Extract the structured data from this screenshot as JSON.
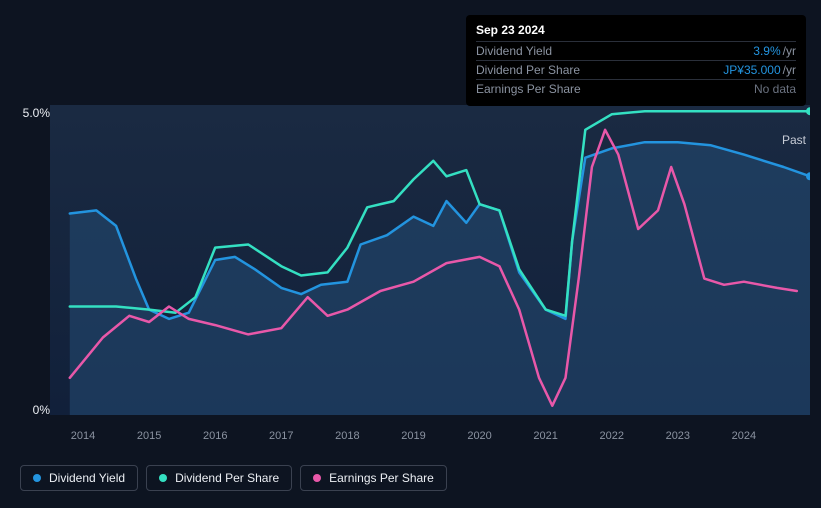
{
  "tooltip": {
    "date": "Sep 23 2024",
    "rows": [
      {
        "label": "Dividend Yield",
        "value": "3.9%",
        "unit": "/yr",
        "value_color": "#2394df"
      },
      {
        "label": "Dividend Per Share",
        "value": "JP¥35.000",
        "unit": "/yr",
        "value_color": "#2394df"
      },
      {
        "label": "Earnings Per Share",
        "value": "No data",
        "nodata": true
      }
    ]
  },
  "chart": {
    "type": "line",
    "background_color": "#0d1421",
    "plot_background_gradient_top": "#1a2a42",
    "plot_background_gradient_bottom": "#11203a",
    "ylim": [
      0,
      5
    ],
    "y_ticks": [
      {
        "v": 0,
        "label": "0%"
      },
      {
        "v": 5,
        "label": "5.0%"
      }
    ],
    "x_years": [
      "2014",
      "2015",
      "2016",
      "2017",
      "2018",
      "2019",
      "2020",
      "2021",
      "2022",
      "2023",
      "2024"
    ],
    "x_domain": [
      2013.5,
      2025.0
    ],
    "past_label": "Past",
    "series": [
      {
        "key": "dividend_yield",
        "name": "Dividend Yield",
        "color": "#2394df",
        "fill": true,
        "fill_color": "#254d74",
        "fill_opacity": 0.55,
        "line_width": 2.5,
        "end_marker": true,
        "data": [
          [
            2013.8,
            3.25
          ],
          [
            2014.2,
            3.3
          ],
          [
            2014.5,
            3.05
          ],
          [
            2014.8,
            2.2
          ],
          [
            2015.0,
            1.7
          ],
          [
            2015.3,
            1.55
          ],
          [
            2015.6,
            1.65
          ],
          [
            2016.0,
            2.5
          ],
          [
            2016.3,
            2.55
          ],
          [
            2016.6,
            2.35
          ],
          [
            2017.0,
            2.05
          ],
          [
            2017.3,
            1.95
          ],
          [
            2017.6,
            2.1
          ],
          [
            2018.0,
            2.15
          ],
          [
            2018.2,
            2.75
          ],
          [
            2018.6,
            2.9
          ],
          [
            2019.0,
            3.2
          ],
          [
            2019.3,
            3.05
          ],
          [
            2019.5,
            3.45
          ],
          [
            2019.8,
            3.1
          ],
          [
            2020.0,
            3.4
          ],
          [
            2020.3,
            3.3
          ],
          [
            2020.6,
            2.3
          ],
          [
            2021.0,
            1.7
          ],
          [
            2021.3,
            1.55
          ],
          [
            2021.4,
            2.8
          ],
          [
            2021.6,
            4.15
          ],
          [
            2022.0,
            4.3
          ],
          [
            2022.5,
            4.4
          ],
          [
            2023.0,
            4.4
          ],
          [
            2023.5,
            4.35
          ],
          [
            2024.0,
            4.2
          ],
          [
            2024.6,
            4.0
          ],
          [
            2025.0,
            3.85
          ]
        ]
      },
      {
        "key": "dividend_per_share",
        "name": "Dividend Per Share",
        "color": "#34e0c2",
        "fill": false,
        "line_width": 2.5,
        "end_marker": true,
        "data": [
          [
            2013.8,
            1.75
          ],
          [
            2014.5,
            1.75
          ],
          [
            2015.0,
            1.7
          ],
          [
            2015.4,
            1.65
          ],
          [
            2015.7,
            1.9
          ],
          [
            2016.0,
            2.7
          ],
          [
            2016.5,
            2.75
          ],
          [
            2017.0,
            2.4
          ],
          [
            2017.3,
            2.25
          ],
          [
            2017.7,
            2.3
          ],
          [
            2018.0,
            2.7
          ],
          [
            2018.3,
            3.35
          ],
          [
            2018.7,
            3.45
          ],
          [
            2019.0,
            3.8
          ],
          [
            2019.3,
            4.1
          ],
          [
            2019.5,
            3.85
          ],
          [
            2019.8,
            3.95
          ],
          [
            2020.0,
            3.4
          ],
          [
            2020.3,
            3.3
          ],
          [
            2020.6,
            2.35
          ],
          [
            2021.0,
            1.7
          ],
          [
            2021.3,
            1.6
          ],
          [
            2021.4,
            2.8
          ],
          [
            2021.6,
            4.6
          ],
          [
            2022.0,
            4.85
          ],
          [
            2022.5,
            4.9
          ],
          [
            2023.0,
            4.9
          ],
          [
            2023.5,
            4.9
          ],
          [
            2024.0,
            4.9
          ],
          [
            2025.0,
            4.9
          ]
        ]
      },
      {
        "key": "earnings_per_share",
        "name": "Earnings Per Share",
        "color": "#e858a9",
        "fill": false,
        "line_width": 2.5,
        "data": [
          [
            2013.8,
            0.6
          ],
          [
            2014.3,
            1.25
          ],
          [
            2014.7,
            1.6
          ],
          [
            2015.0,
            1.5
          ],
          [
            2015.3,
            1.75
          ],
          [
            2015.6,
            1.55
          ],
          [
            2016.0,
            1.45
          ],
          [
            2016.5,
            1.3
          ],
          [
            2017.0,
            1.4
          ],
          [
            2017.4,
            1.9
          ],
          [
            2017.7,
            1.6
          ],
          [
            2018.0,
            1.7
          ],
          [
            2018.5,
            2.0
          ],
          [
            2019.0,
            2.15
          ],
          [
            2019.5,
            2.45
          ],
          [
            2020.0,
            2.55
          ],
          [
            2020.3,
            2.4
          ],
          [
            2020.6,
            1.7
          ],
          [
            2020.9,
            0.6
          ],
          [
            2021.1,
            0.15
          ],
          [
            2021.3,
            0.6
          ],
          [
            2021.5,
            2.2
          ],
          [
            2021.7,
            4.0
          ],
          [
            2021.9,
            4.6
          ],
          [
            2022.1,
            4.2
          ],
          [
            2022.4,
            3.0
          ],
          [
            2022.7,
            3.3
          ],
          [
            2022.9,
            4.0
          ],
          [
            2023.1,
            3.4
          ],
          [
            2023.4,
            2.2
          ],
          [
            2023.7,
            2.1
          ],
          [
            2024.0,
            2.15
          ],
          [
            2024.5,
            2.05
          ],
          [
            2024.8,
            2.0
          ]
        ]
      }
    ],
    "legend": [
      {
        "label": "Dividend Yield",
        "color": "#2394df"
      },
      {
        "label": "Dividend Per Share",
        "color": "#34e0c2"
      },
      {
        "label": "Earnings Per Share",
        "color": "#e858a9"
      }
    ]
  }
}
